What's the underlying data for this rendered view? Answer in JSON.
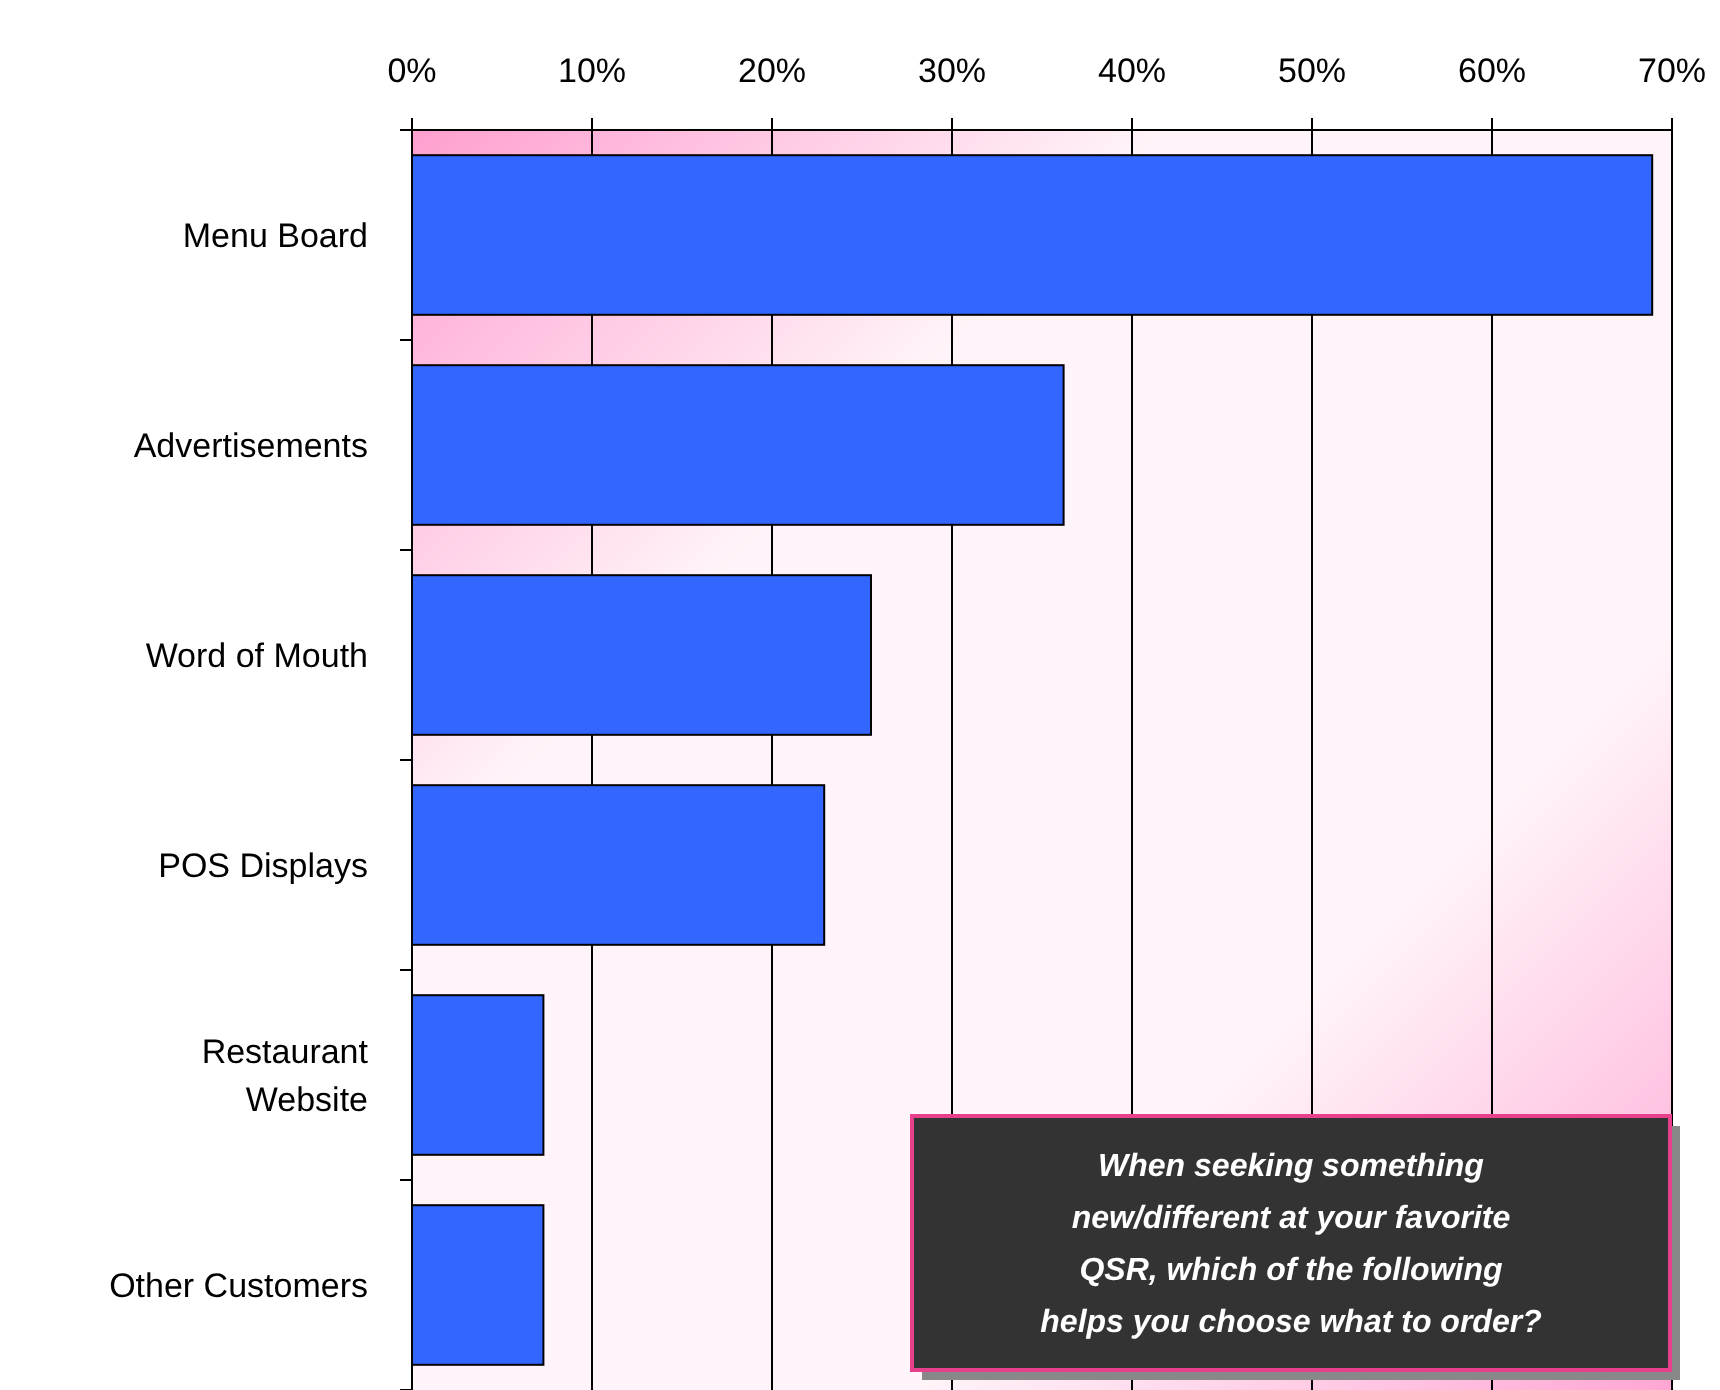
{
  "chart_data": {
    "type": "bar",
    "orientation": "horizontal",
    "categories": [
      "Menu Board",
      "Advertisements",
      "Word of Mouth",
      "POS Displays",
      "Restaurant Website",
      "Other Customers"
    ],
    "values": [
      68.9,
      36.2,
      25.5,
      22.9,
      7.3,
      7.3
    ],
    "color": "#3366ff",
    "xlim": [
      0,
      70
    ],
    "xticks": [
      {
        "value": 0,
        "label": "0%"
      },
      {
        "value": 10,
        "label": "10%"
      },
      {
        "value": 20,
        "label": "20%"
      },
      {
        "value": 30,
        "label": "30%"
      },
      {
        "value": 40,
        "label": "40%"
      },
      {
        "value": 50,
        "label": "50%"
      },
      {
        "value": 60,
        "label": "60%"
      },
      {
        "value": 70,
        "label": "70%"
      }
    ],
    "grid": "x",
    "annotations": [
      "When seeking something new/different at your favorite QSR, which of the following helps you choose what to order?"
    ]
  }
}
